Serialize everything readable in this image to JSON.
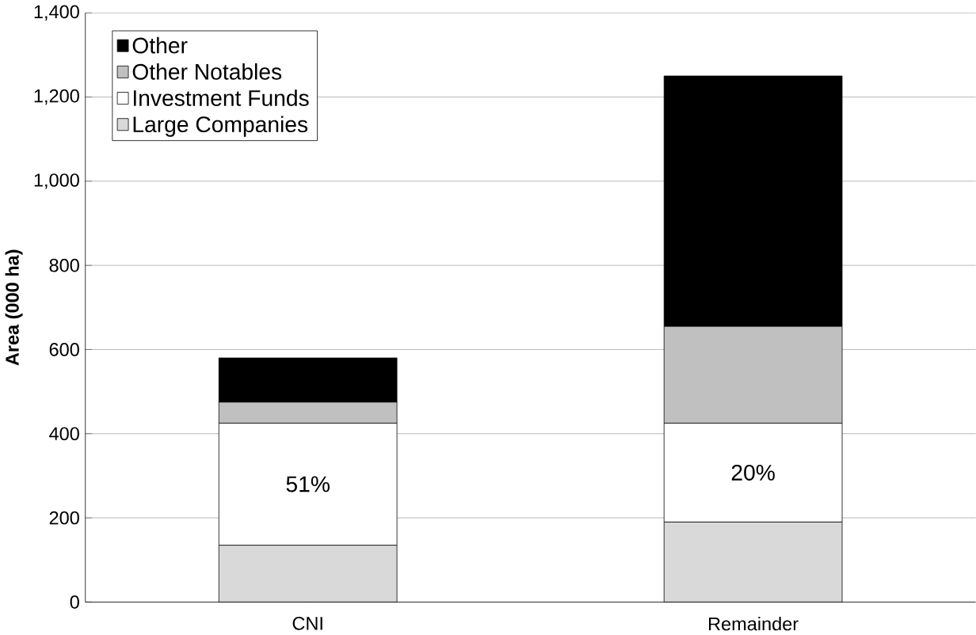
{
  "chart_data": {
    "type": "bar",
    "stacked": true,
    "ylabel": "**Area (000 ha)**",
    "categories": [
      "CNI",
      "Remainder"
    ],
    "series": [
      {
        "name": "Large Companies",
        "color": "#d9d9d9",
        "values": [
          135,
          190
        ]
      },
      {
        "name": "Investment Funds",
        "color": "#ffffff",
        "values": [
          290,
          235
        ]
      },
      {
        "name": "Other Notables",
        "color": "#c0c0c0",
        "values": [
          50,
          230
        ]
      },
      {
        "name": "Other",
        "color": "#000000",
        "values": [
          105,
          595
        ]
      }
    ],
    "ylim": [
      0,
      1400
    ],
    "yticks": [
      0,
      200,
      400,
      600,
      800,
      {
        "value": 1000,
        "label": "1,000"
      },
      {
        "value": 1200,
        "label": "1,200"
      },
      {
        "value": 1400,
        "label": "1,400"
      }
    ],
    "grid": "y",
    "legend": "top left",
    "annotations": [
      "51%",
      "20%"
    ]
  }
}
